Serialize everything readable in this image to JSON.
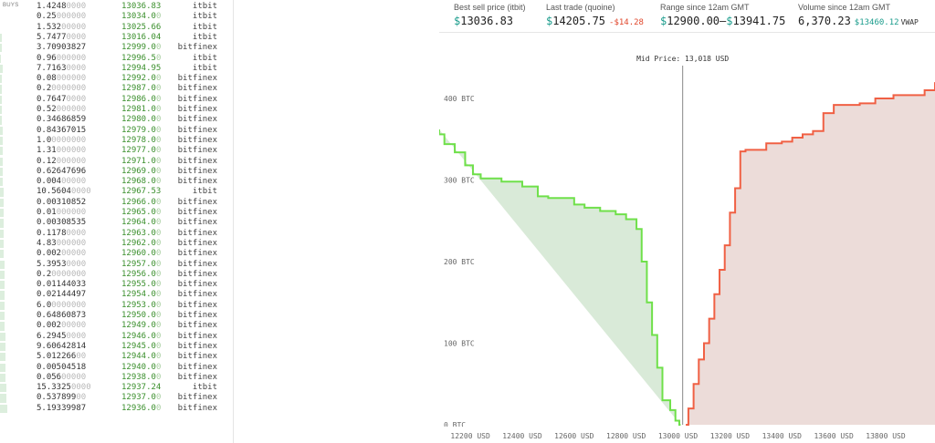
{
  "buys": {
    "header": "BUYS",
    "rows": [
      {
        "a": "1.4248",
        "z": "0000",
        "p": "13036.83",
        "pz": "",
        "ex": "itbit",
        "bar": 0
      },
      {
        "a": "0.25",
        "z": "000000",
        "p": "13034.0",
        "pz": "0",
        "ex": "itbit",
        "bar": 0
      },
      {
        "a": "1.532",
        "z": "00000",
        "p": "13025.66",
        "pz": "",
        "ex": "itbit",
        "bar": 0
      },
      {
        "a": "5.7477",
        "z": "0000",
        "p": "13016.04",
        "pz": "",
        "ex": "itbit",
        "bar": 2
      },
      {
        "a": "3.70903827",
        "z": "",
        "p": "12999.0",
        "pz": "0",
        "ex": "bitfinex",
        "bar": 2
      },
      {
        "a": "0.96",
        "z": "000000",
        "p": "12996.5",
        "pz": "0",
        "ex": "itbit",
        "bar": 1
      },
      {
        "a": "7.7163",
        "z": "0000",
        "p": "12994.95",
        "pz": "",
        "ex": "itbit",
        "bar": 3
      },
      {
        "a": "0.08",
        "z": "000000",
        "p": "12992.0",
        "pz": "0",
        "ex": "bitfinex",
        "bar": 2
      },
      {
        "a": "0.2",
        "z": "0000000",
        "p": "12987.0",
        "pz": "0",
        "ex": "bitfinex",
        "bar": 2
      },
      {
        "a": "0.7647",
        "z": "0000",
        "p": "12986.0",
        "pz": "0",
        "ex": "bitfinex",
        "bar": 2
      },
      {
        "a": "0.52",
        "z": "000000",
        "p": "12981.0",
        "pz": "0",
        "ex": "bitfinex",
        "bar": 2
      },
      {
        "a": "0.34686859",
        "z": "",
        "p": "12980.0",
        "pz": "0",
        "ex": "bitfinex",
        "bar": 2
      },
      {
        "a": "0.84367015",
        "z": "",
        "p": "12979.0",
        "pz": "0",
        "ex": "bitfinex",
        "bar": 3
      },
      {
        "a": "1.0",
        "z": "0000000",
        "p": "12978.0",
        "pz": "0",
        "ex": "bitfinex",
        "bar": 3
      },
      {
        "a": "1.31",
        "z": "000000",
        "p": "12977.0",
        "pz": "0",
        "ex": "bitfinex",
        "bar": 3
      },
      {
        "a": "0.12",
        "z": "000000",
        "p": "12971.0",
        "pz": "0",
        "ex": "bitfinex",
        "bar": 3
      },
      {
        "a": "0.62647696",
        "z": "",
        "p": "12969.0",
        "pz": "0",
        "ex": "bitfinex",
        "bar": 3
      },
      {
        "a": "0.004",
        "z": "00000",
        "p": "12968.0",
        "pz": "0",
        "ex": "bitfinex",
        "bar": 3
      },
      {
        "a": "10.5604",
        "z": "0000",
        "p": "12967.53",
        "pz": "",
        "ex": "itbit",
        "bar": 4
      },
      {
        "a": "0.00310852",
        "z": "",
        "p": "12966.0",
        "pz": "0",
        "ex": "bitfinex",
        "bar": 4
      },
      {
        "a": "0.01",
        "z": "000000",
        "p": "12965.0",
        "pz": "0",
        "ex": "bitfinex",
        "bar": 4
      },
      {
        "a": "0.00308535",
        "z": "",
        "p": "12964.0",
        "pz": "0",
        "ex": "bitfinex",
        "bar": 4
      },
      {
        "a": "0.1178",
        "z": "0000",
        "p": "12963.0",
        "pz": "0",
        "ex": "bitfinex",
        "bar": 4
      },
      {
        "a": "4.83",
        "z": "000000",
        "p": "12962.0",
        "pz": "0",
        "ex": "bitfinex",
        "bar": 4
      },
      {
        "a": "0.002",
        "z": "00000",
        "p": "12960.0",
        "pz": "0",
        "ex": "bitfinex",
        "bar": 4
      },
      {
        "a": "5.3953",
        "z": "0000",
        "p": "12957.0",
        "pz": "0",
        "ex": "bitfinex",
        "bar": 5
      },
      {
        "a": "0.2",
        "z": "0000000",
        "p": "12956.0",
        "pz": "0",
        "ex": "bitfinex",
        "bar": 5
      },
      {
        "a": "0.01144033",
        "z": "",
        "p": "12955.0",
        "pz": "0",
        "ex": "bitfinex",
        "bar": 5
      },
      {
        "a": "0.02144497",
        "z": "",
        "p": "12954.0",
        "pz": "0",
        "ex": "bitfinex",
        "bar": 5
      },
      {
        "a": "6.0",
        "z": "0000000",
        "p": "12953.0",
        "pz": "0",
        "ex": "bitfinex",
        "bar": 5
      },
      {
        "a": "0.64860873",
        "z": "",
        "p": "12950.0",
        "pz": "0",
        "ex": "bitfinex",
        "bar": 5
      },
      {
        "a": "0.002",
        "z": "00000",
        "p": "12949.0",
        "pz": "0",
        "ex": "bitfinex",
        "bar": 5
      },
      {
        "a": "6.2945",
        "z": "0000",
        "p": "12946.0",
        "pz": "0",
        "ex": "bitfinex",
        "bar": 6
      },
      {
        "a": "9.60642814",
        "z": "",
        "p": "12945.0",
        "pz": "0",
        "ex": "bitfinex",
        "bar": 6
      },
      {
        "a": "5.012266",
        "z": "00",
        "p": "12944.0",
        "pz": "0",
        "ex": "bitfinex",
        "bar": 6
      },
      {
        "a": "0.00504518",
        "z": "",
        "p": "12940.0",
        "pz": "0",
        "ex": "bitfinex",
        "bar": 6
      },
      {
        "a": "0.056",
        "z": "00000",
        "p": "12938.0",
        "pz": "0",
        "ex": "bitfinex",
        "bar": 6
      },
      {
        "a": "15.3325",
        "z": "0000",
        "p": "12937.24",
        "pz": "",
        "ex": "itbit",
        "bar": 7
      },
      {
        "a": "0.537899",
        "z": "00",
        "p": "12937.0",
        "pz": "0",
        "ex": "bitfinex",
        "bar": 7
      },
      {
        "a": "5.19339987",
        "z": "",
        "p": "12936.0",
        "pz": "0",
        "ex": "bitfinex",
        "bar": 8
      }
    ]
  },
  "stats": {
    "best_sell": {
      "label": "Best sell price (itbit)",
      "currency": "$",
      "value": "13036.83"
    },
    "last_trade": {
      "label": "Last trade (quoine)",
      "currency": "$",
      "value": "14205.75",
      "change": "-$14.28"
    },
    "range": {
      "label": "Range since 12am GMT",
      "cur1": "$",
      "low": "12900.00",
      "sep": "–",
      "cur2": "$",
      "high": "13941.75"
    },
    "volume": {
      "label": "Volume since 12am GMT",
      "value": "6,370.23",
      "vwap_price": "$13460.12",
      "vwap_label": "VWAP"
    }
  },
  "depth_chart": {
    "mid_label": "Mid Price: 13,018 USD",
    "x_ticks": [
      "12200 USD",
      "12400 USD",
      "12600 USD",
      "12800 USD",
      "13000 USD",
      "13200 USD",
      "13400 USD",
      "13600 USD",
      "13800 USD"
    ],
    "y_ticks": [
      "0 BTC",
      "100 BTC",
      "200 BTC",
      "300 BTC",
      "400 BTC"
    ],
    "colors": {
      "bid_line": "#6fe04a",
      "bid_fill": "#d9ead8",
      "ask_line": "#f06044",
      "ask_fill": "#ecdcd9"
    }
  },
  "chart_data": {
    "type": "area",
    "title": "Mid Price: 13,018 USD",
    "xlabel": "",
    "ylabel": "",
    "xlim": [
      12080,
      13990
    ],
    "ylim": [
      0,
      410
    ],
    "mid_price": 13018,
    "series": [
      {
        "values_xy": [
          [
            13010,
            0
          ],
          [
            13005,
            5
          ],
          [
            12990,
            18
          ],
          [
            12970,
            30
          ],
          [
            12940,
            70
          ],
          [
            12920,
            110
          ],
          [
            12900,
            150
          ],
          [
            12880,
            200
          ],
          [
            12860,
            240
          ],
          [
            12840,
            252
          ],
          [
            12800,
            258
          ],
          [
            12760,
            262
          ],
          [
            12700,
            266
          ],
          [
            12640,
            270
          ],
          [
            12600,
            278
          ],
          [
            12500,
            280
          ],
          [
            12460,
            292
          ],
          [
            12400,
            298
          ],
          [
            12320,
            302
          ],
          [
            12240,
            307
          ],
          [
            12210,
            318
          ],
          [
            12180,
            334
          ],
          [
            12140,
            344
          ],
          [
            12100,
            356
          ],
          [
            12080,
            362
          ]
        ]
      },
      {
        "values_xy": [
          [
            13030,
            0
          ],
          [
            13040,
            20
          ],
          [
            13060,
            50
          ],
          [
            13080,
            80
          ],
          [
            13100,
            100
          ],
          [
            13120,
            130
          ],
          [
            13140,
            160
          ],
          [
            13160,
            190
          ],
          [
            13180,
            220
          ],
          [
            13200,
            260
          ],
          [
            13220,
            290
          ],
          [
            13240,
            335
          ],
          [
            13260,
            337
          ],
          [
            13340,
            345
          ],
          [
            13400,
            347
          ],
          [
            13440,
            352
          ],
          [
            13480,
            356
          ],
          [
            13520,
            360
          ],
          [
            13560,
            382
          ],
          [
            13600,
            392
          ],
          [
            13700,
            394
          ],
          [
            13760,
            400
          ],
          [
            13830,
            404
          ],
          [
            13950,
            410
          ],
          [
            13990,
            420
          ]
        ]
      }
    ]
  }
}
